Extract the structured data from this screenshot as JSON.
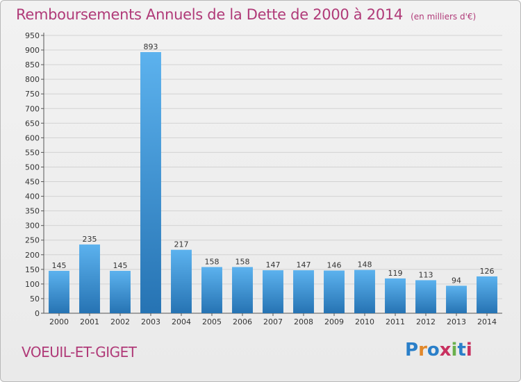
{
  "chart_data": {
    "type": "bar",
    "title": "Remboursements Annuels de la Dette de 2000 à 2014",
    "subtitle": "(en milliers d'€)",
    "categories": [
      "2000",
      "2001",
      "2002",
      "2003",
      "2004",
      "2005",
      "2006",
      "2007",
      "2008",
      "2009",
      "2010",
      "2011",
      "2012",
      "2013",
      "2014"
    ],
    "values": [
      145,
      235,
      145,
      893,
      217,
      158,
      158,
      147,
      147,
      146,
      148,
      119,
      113,
      94,
      126
    ],
    "ylim": [
      0,
      950
    ],
    "yticks": [
      0,
      50,
      100,
      150,
      200,
      250,
      300,
      350,
      400,
      450,
      500,
      550,
      600,
      650,
      700,
      750,
      800,
      850,
      900,
      950
    ],
    "grid": true,
    "bar_color": "#3e95d8"
  },
  "footer": {
    "place": "VOEUIL-ET-GIGET",
    "logo_letters": [
      "P",
      "r",
      "o",
      "x",
      "i",
      "t",
      "i"
    ],
    "logo_colors": [
      "#2a7fc9",
      "#e2882a",
      "#2a7fc9",
      "#c8305f",
      "#6ab04c",
      "#2a7fc9",
      "#c8305f"
    ]
  }
}
